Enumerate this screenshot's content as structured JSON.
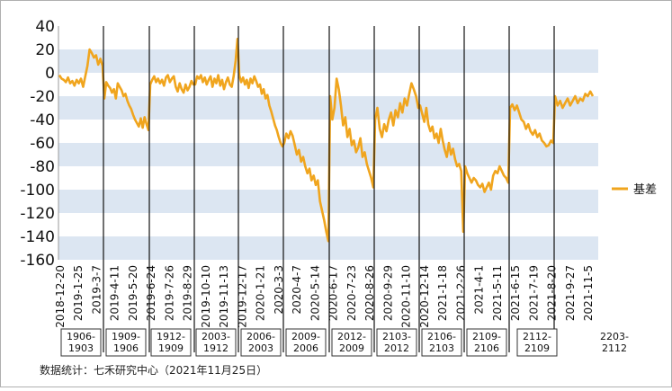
{
  "chart_data": {
    "type": "line",
    "ylim": [
      -160,
      40
    ],
    "yticks": [
      40,
      20,
      0,
      -20,
      -40,
      -60,
      -80,
      -100,
      -120,
      -140,
      -160
    ],
    "band_color": "#dce6f2",
    "line_color": "#f0a51e",
    "x_tick_labels": [
      "2018-12-20",
      "2019-1-25",
      "2019-3-7",
      "2019-4-11",
      "2019-5-20",
      "2019-6-24",
      "2019-7-26",
      "2019-8-29",
      "2019-10-10",
      "2019-11-13",
      "2019-12-17",
      "2020-1-21",
      "2020-3-3",
      "2020-4-7",
      "2020-5-14",
      "2020-6-17",
      "2020-7-23",
      "2020-8-26",
      "2020-9-29",
      "2020-11-10",
      "2020-12-14",
      "2021-1-18",
      "2021-2-26",
      "2021-4-1",
      "2021-5-11",
      "2021-6-15",
      "2021-7-19",
      "2021-8-20",
      "2021-9-27",
      "2021-11-5"
    ],
    "contract_periods": [
      "1906-1903",
      "1909-1906",
      "1912-1909",
      "2003-1912",
      "2006-2003",
      "2009-2006",
      "2012-2009",
      "2103-2012",
      "2106-2103",
      "2109-2106",
      "2112-2109",
      "2203-2112"
    ],
    "contract_labels": [
      [
        "1906-",
        "1903"
      ],
      [
        "1909-",
        "1906"
      ],
      [
        "1912-",
        "1909"
      ],
      [
        "2003-",
        "1912"
      ],
      [
        "2006-",
        "2003"
      ],
      [
        "2009-",
        "2006"
      ],
      [
        "2012-",
        "2009"
      ],
      [
        "2103-",
        "2012"
      ],
      [
        "2106-",
        "2103"
      ],
      [
        "2109-",
        "2106"
      ],
      [
        "2112-",
        "2109"
      ],
      [
        "2203-",
        "2112"
      ]
    ],
    "series": [
      {
        "name": "基差",
        "segments": [
          {
            "label": "1906-1903",
            "values": [
              -2,
              -5,
              -6,
              -8,
              -4,
              -9,
              -7,
              -11,
              -6,
              -9,
              -5,
              -12,
              -3,
              6,
              20,
              17,
              13,
              15,
              7,
              12,
              6
            ]
          },
          {
            "label": "1909-1906",
            "values": [
              -22,
              -8,
              -11,
              -13,
              -17,
              -14,
              -22,
              -9,
              -12,
              -15,
              -20,
              -18,
              -24,
              -28,
              -31,
              -36,
              -40,
              -43,
              -46,
              -39,
              -47,
              -38,
              -44,
              -49
            ]
          },
          {
            "label": "1912-1909",
            "values": [
              -10,
              -6,
              -3,
              -8,
              -5,
              -9,
              -6,
              -11,
              -4,
              -2,
              -8,
              -5,
              -3,
              -12,
              -16,
              -9,
              -14,
              -17,
              -10,
              -15,
              -12,
              -7,
              -10
            ]
          },
          {
            "label": "2003-1912",
            "values": [
              -10,
              -3,
              -5,
              -2,
              -8,
              -4,
              -10,
              -6,
              -3,
              -12,
              -5,
              -9,
              -2,
              -11,
              -6,
              -14,
              -8,
              -4,
              -10,
              -12,
              -3,
              10,
              29
            ]
          },
          {
            "label": "2006-2003",
            "values": [
              -2,
              -8,
              -4,
              -10,
              -6,
              -13,
              -5,
              -9,
              -3,
              -7,
              -12,
              -10,
              -18,
              -14,
              -22,
              -19,
              -28,
              -33,
              -39,
              -45,
              -49,
              -55,
              -60,
              -63
            ]
          },
          {
            "label": "2009-2006",
            "values": [
              -60,
              -52,
              -56,
              -50,
              -54,
              -62,
              -70,
              -66,
              -76,
              -72,
              -80,
              -86,
              -82,
              -92,
              -88,
              -96,
              -92,
              -110,
              -118,
              -126,
              -136,
              -144
            ]
          },
          {
            "label": "2012-2009",
            "values": [
              -20,
              -40,
              -30,
              -5,
              -14,
              -28,
              -45,
              -38,
              -55,
              -48,
              -62,
              -58,
              -68,
              -64,
              -56,
              -72,
              -68,
              -78,
              -84,
              -90,
              -98
            ]
          },
          {
            "label": "2103-2012",
            "values": [
              -40,
              -30,
              -48,
              -55,
              -44,
              -50,
              -40,
              -34,
              -45,
              -32,
              -38,
              -26,
              -34,
              -22,
              -28,
              -18,
              -9,
              -14,
              -20,
              -30
            ]
          },
          {
            "label": "2106-2103",
            "values": [
              -28,
              -35,
              -42,
              -30,
              -44,
              -50,
              -46,
              -56,
              -52,
              -60,
              -48,
              -58,
              -66,
              -72,
              -60,
              -70,
              -65,
              -74,
              -80,
              -78,
              -84,
              -136
            ]
          },
          {
            "label": "2109-2106",
            "values": [
              -80,
              -86,
              -90,
              -94,
              -90,
              -92,
              -96,
              -98,
              -95,
              -102,
              -98,
              -94,
              -100,
              -88,
              -84,
              -86,
              -80,
              -84,
              -88,
              -90,
              -94
            ]
          },
          {
            "label": "2112-2109",
            "values": [
              -30,
              -27,
              -32,
              -28,
              -34,
              -40,
              -42,
              -48,
              -44,
              -50,
              -53,
              -49,
              -55,
              -52,
              -58,
              -60,
              -63,
              -62,
              -58,
              -60
            ]
          },
          {
            "label": "2203-2112",
            "values": [
              -20,
              -28,
              -24,
              -30,
              -26,
              -22,
              -28,
              -24,
              -20,
              -26,
              -22,
              -24,
              -18,
              -20,
              -16,
              -20
            ]
          }
        ]
      }
    ],
    "legend": {
      "position": "right",
      "label": "基差"
    }
  },
  "footer": {
    "source": "数据统计：七禾研究中心（2021年11月25日）"
  }
}
